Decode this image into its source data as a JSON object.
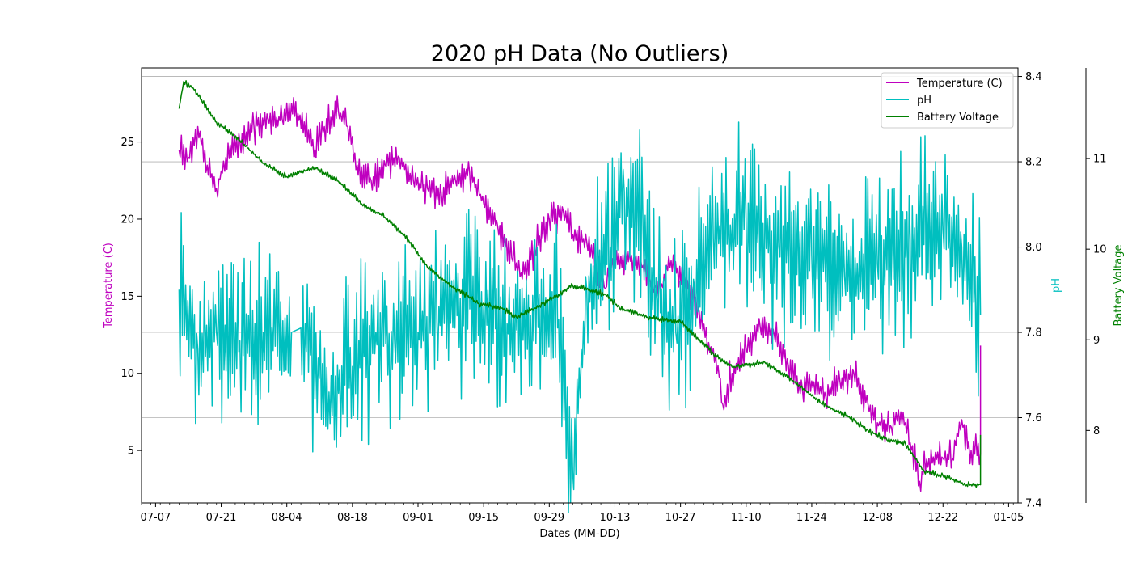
{
  "chart_data": {
    "type": "line",
    "title": "2020 pH Data (No Outliers)",
    "xlabel": "Dates (MM-DD)",
    "x_ticks": [
      "07-07",
      "07-21",
      "08-04",
      "08-18",
      "09-01",
      "09-15",
      "09-29",
      "10-13",
      "10-27",
      "11-10",
      "11-24",
      "12-08",
      "12-22",
      "01-05"
    ],
    "xlim": [
      "2020-07-04",
      "2021-01-07"
    ],
    "grid": "horizontal, pH axis",
    "legend": "top-right",
    "axes": {
      "left": {
        "label": "Temperature (C)",
        "color": "#bf00bf",
        "ylim": [
          1.6,
          29.8
        ],
        "ticks": [
          5,
          10,
          15,
          20,
          25
        ]
      },
      "right": {
        "label": "pH",
        "color": "#00bfbf",
        "ylim": [
          7.4,
          8.42
        ],
        "ticks": [
          "7.4",
          "7.6",
          "7.8",
          "8.0",
          "8.2",
          "8.4"
        ]
      },
      "right_outer": {
        "label": "Battery Voltage",
        "color": "#008000",
        "ylim": [
          7.2,
          12.0
        ],
        "ticks": [
          8,
          9,
          10,
          11
        ]
      }
    },
    "series": [
      {
        "name": "Temperature (C)",
        "axis": "left",
        "color": "#bf00bf",
        "noise": 1.4,
        "points": [
          [
            "2020-07-12",
            24.5
          ],
          [
            "2020-07-14",
            24.0
          ],
          [
            "2020-07-16",
            26.0
          ],
          [
            "2020-07-18",
            23.5
          ],
          [
            "2020-07-20",
            22.0
          ],
          [
            "2020-07-22",
            24.0
          ],
          [
            "2020-07-25",
            25.0
          ],
          [
            "2020-07-28",
            26.0
          ],
          [
            "2020-07-31",
            26.5
          ],
          [
            "2020-08-03",
            26.5
          ],
          [
            "2020-08-05",
            27.5
          ],
          [
            "2020-08-10",
            24.5
          ],
          [
            "2020-08-12",
            26.0
          ],
          [
            "2020-08-15",
            27.0
          ],
          [
            "2020-08-17",
            26.0
          ],
          [
            "2020-08-19",
            23.5
          ],
          [
            "2020-08-22",
            22.5
          ],
          [
            "2020-08-25",
            23.5
          ],
          [
            "2020-08-28",
            24.0
          ],
          [
            "2020-08-31",
            22.5
          ],
          [
            "2020-09-03",
            22.0
          ],
          [
            "2020-09-06",
            21.5
          ],
          [
            "2020-09-09",
            22.5
          ],
          [
            "2020-09-12",
            23.0
          ],
          [
            "2020-09-15",
            21.0
          ],
          [
            "2020-09-18",
            19.5
          ],
          [
            "2020-09-21",
            17.5
          ],
          [
            "2020-09-23",
            16.5
          ],
          [
            "2020-09-26",
            18.0
          ],
          [
            "2020-09-29",
            20.0
          ],
          [
            "2020-10-02",
            20.5
          ],
          [
            "2020-10-04",
            19.0
          ],
          [
            "2020-10-07",
            18.5
          ],
          [
            "2020-10-09",
            17.0
          ],
          [
            "2020-10-11",
            15.5
          ],
          [
            "2020-10-12",
            17.2
          ],
          [
            "2020-10-17",
            17.5
          ],
          [
            "2020-10-19",
            17.0
          ],
          [
            "2020-10-21",
            15.5
          ],
          [
            "2020-10-23",
            15.8
          ],
          [
            "2020-10-25",
            17.3
          ],
          [
            "2020-10-28",
            16.0
          ],
          [
            "2020-10-31",
            14.0
          ],
          [
            "2020-11-02",
            12.0
          ],
          [
            "2020-11-04",
            10.5
          ],
          [
            "2020-11-05",
            8.0
          ],
          [
            "2020-11-07",
            10.0
          ],
          [
            "2020-11-10",
            11.5
          ],
          [
            "2020-11-13",
            13.0
          ],
          [
            "2020-11-16",
            12.5
          ],
          [
            "2020-11-19",
            10.5
          ],
          [
            "2020-11-22",
            9.0
          ],
          [
            "2020-11-24",
            9.5
          ],
          [
            "2020-11-27",
            8.5
          ],
          [
            "2020-11-30",
            9.5
          ],
          [
            "2020-12-03",
            10.0
          ],
          [
            "2020-12-06",
            8.0
          ],
          [
            "2020-12-08",
            6.8
          ],
          [
            "2020-12-11",
            6.5
          ],
          [
            "2020-12-13",
            7.5
          ],
          [
            "2020-12-15",
            5.5
          ],
          [
            "2020-12-17",
            3.0
          ],
          [
            "2020-12-19",
            4.5
          ],
          [
            "2020-12-22",
            4.5
          ],
          [
            "2020-12-24",
            4.5
          ],
          [
            "2020-12-26",
            7.0
          ],
          [
            "2020-12-28",
            5.0
          ],
          [
            "2020-12-30",
            4.8
          ],
          [
            "2020-12-30",
            11.8
          ]
        ]
      },
      {
        "name": "pH",
        "axis": "right",
        "color": "#00bfbf",
        "noise": 0.26,
        "points": [
          [
            "2020-07-12",
            7.9
          ],
          [
            "2020-07-16",
            7.76
          ],
          [
            "2020-07-20",
            7.8
          ],
          [
            "2020-07-25",
            7.78
          ],
          [
            "2020-07-30",
            7.8
          ],
          [
            "2020-08-05",
            7.8
          ],
          [
            "2020-08-07",
            7.81
          ],
          [
            "2020-08-13",
            7.66
          ],
          [
            "2020-08-18",
            7.72
          ],
          [
            "2020-08-23",
            7.8
          ],
          [
            "2020-08-27",
            7.78
          ],
          [
            "2020-09-01",
            7.8
          ],
          [
            "2020-09-05",
            7.83
          ],
          [
            "2020-09-10",
            7.88
          ],
          [
            "2020-09-15",
            7.86
          ],
          [
            "2020-09-20",
            7.82
          ],
          [
            "2020-09-25",
            7.84
          ],
          [
            "2020-10-01",
            7.83
          ],
          [
            "2020-10-04",
            7.47
          ],
          [
            "2020-10-07",
            7.9
          ],
          [
            "2020-10-12",
            8.0
          ],
          [
            "2020-10-15",
            8.13
          ],
          [
            "2020-10-19",
            8.04
          ],
          [
            "2020-10-22",
            7.88
          ],
          [
            "2020-10-26",
            7.8
          ],
          [
            "2020-10-30",
            7.9
          ],
          [
            "2020-11-03",
            8.02
          ],
          [
            "2020-11-10",
            8.06
          ],
          [
            "2020-11-17",
            8.0
          ],
          [
            "2020-11-24",
            7.98
          ],
          [
            "2020-12-01",
            7.93
          ],
          [
            "2020-12-08",
            7.96
          ],
          [
            "2020-12-15",
            8.02
          ],
          [
            "2020-12-22",
            8.04
          ],
          [
            "2020-12-26",
            8.0
          ],
          [
            "2020-12-30",
            7.84
          ]
        ],
        "gaps": [
          [
            [
              "2020-08-05",
              7.8
            ],
            [
              "2020-08-07",
              7.81
            ]
          ],
          [
            [
              "2020-10-06",
              7.45
            ],
            [
              "2020-10-09",
              8.08
            ],
            [
              "2020-10-13",
              8.14
            ],
            [
              "2020-10-17",
              8.0
            ]
          ],
          [
            [
              "2020-11-17",
              7.95
            ],
            [
              "2020-11-21",
              8.1
            ]
          ]
        ]
      },
      {
        "name": "Battery Voltage",
        "axis": "right_outer",
        "color": "#008000",
        "noise": 0.04,
        "points": [
          [
            "2020-07-12",
            11.55
          ],
          [
            "2020-07-13",
            11.85
          ],
          [
            "2020-07-15",
            11.78
          ],
          [
            "2020-07-20",
            11.4
          ],
          [
            "2020-07-25",
            11.2
          ],
          [
            "2020-07-30",
            10.95
          ],
          [
            "2020-08-04",
            10.8
          ],
          [
            "2020-08-10",
            10.9
          ],
          [
            "2020-08-15",
            10.75
          ],
          [
            "2020-08-20",
            10.5
          ],
          [
            "2020-08-25",
            10.35
          ],
          [
            "2020-08-30",
            10.1
          ],
          [
            "2020-09-03",
            9.8
          ],
          [
            "2020-09-08",
            9.6
          ],
          [
            "2020-09-14",
            9.4
          ],
          [
            "2020-09-19",
            9.35
          ],
          [
            "2020-09-22",
            9.25
          ],
          [
            "2020-09-26",
            9.35
          ],
          [
            "2020-10-01",
            9.5
          ],
          [
            "2020-10-04",
            9.6
          ],
          [
            "2020-10-11",
            9.5
          ],
          [
            "2020-10-14",
            9.35
          ],
          [
            "2020-10-20",
            9.25
          ],
          [
            "2020-10-27",
            9.2
          ],
          [
            "2020-11-03",
            8.85
          ],
          [
            "2020-11-07",
            8.7
          ],
          [
            "2020-11-14",
            8.75
          ],
          [
            "2020-11-20",
            8.55
          ],
          [
            "2020-11-26",
            8.3
          ],
          [
            "2020-12-02",
            8.15
          ],
          [
            "2020-12-06",
            8.0
          ],
          [
            "2020-12-10",
            7.9
          ],
          [
            "2020-12-14",
            7.85
          ],
          [
            "2020-12-18",
            7.55
          ],
          [
            "2020-12-22",
            7.5
          ],
          [
            "2020-12-27",
            7.4
          ],
          [
            "2020-12-30",
            7.4
          ],
          [
            "2020-12-30",
            7.95
          ]
        ]
      }
    ]
  }
}
